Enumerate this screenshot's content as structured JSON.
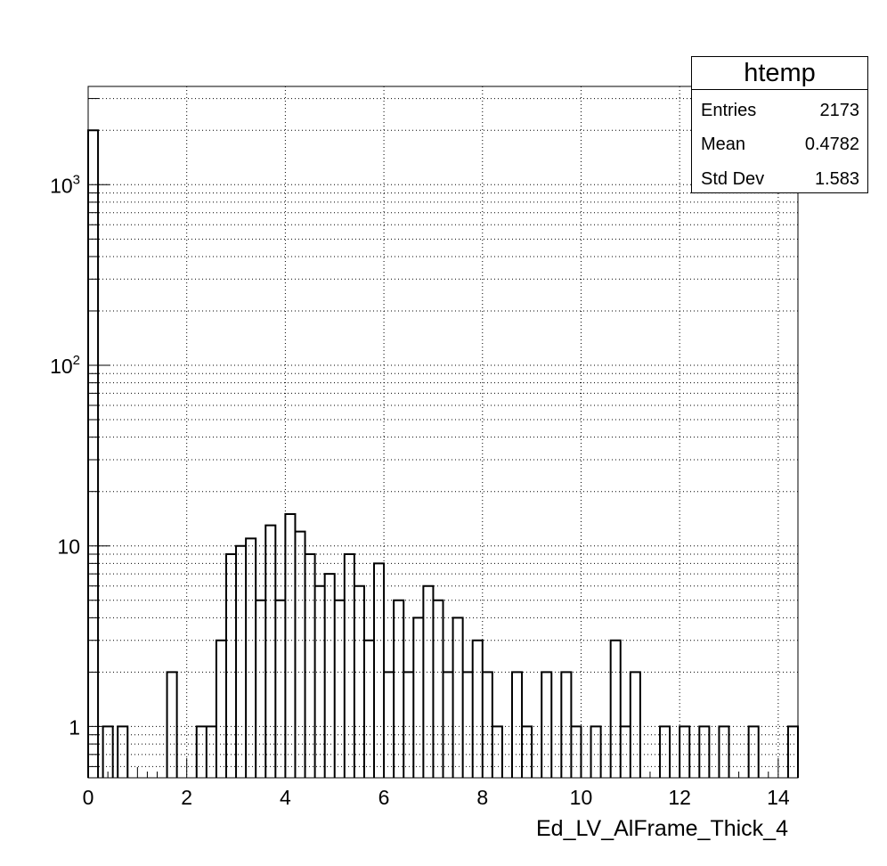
{
  "stats": {
    "title": "htemp",
    "rows": [
      {
        "key": "Entries",
        "value": "2173"
      },
      {
        "key": "Mean",
        "value": "0.4782"
      },
      {
        "key": "Std Dev",
        "value": "1.583"
      }
    ]
  },
  "chart_data": {
    "type": "histogram",
    "xlabel": "Ed_LV_AlFrame_Thick_4",
    "ylabel": "",
    "xlim": [
      0,
      14.4
    ],
    "ylim": [
      0.52,
      3500
    ],
    "yscale": "log",
    "grid": true,
    "legend": "top-right",
    "bin_width": 0.2,
    "x_ticks": [
      "0",
      "2",
      "4",
      "6",
      "8",
      "10",
      "12",
      "14"
    ],
    "y_ticks": [
      {
        "value": 1,
        "base": "1",
        "exp": ""
      },
      {
        "value": 10,
        "base": "10",
        "exp": ""
      },
      {
        "value": 100,
        "base": "10",
        "exp": "2"
      },
      {
        "value": 1000,
        "base": "10",
        "exp": "3"
      }
    ],
    "bins": [
      {
        "x": 0.0,
        "y": 2000
      },
      {
        "x": 0.2,
        "y": 0
      },
      {
        "x": 0.3,
        "y": 1
      },
      {
        "x": 0.6,
        "y": 1
      },
      {
        "x": 1.6,
        "y": 2
      },
      {
        "x": 2.2,
        "y": 1
      },
      {
        "x": 2.4,
        "y": 1
      },
      {
        "x": 2.6,
        "y": 3
      },
      {
        "x": 2.8,
        "y": 9
      },
      {
        "x": 3.0,
        "y": 10
      },
      {
        "x": 3.2,
        "y": 11
      },
      {
        "x": 3.4,
        "y": 5
      },
      {
        "x": 3.6,
        "y": 13
      },
      {
        "x": 3.8,
        "y": 5
      },
      {
        "x": 4.0,
        "y": 15
      },
      {
        "x": 4.2,
        "y": 12
      },
      {
        "x": 4.4,
        "y": 9
      },
      {
        "x": 4.6,
        "y": 6
      },
      {
        "x": 4.8,
        "y": 7
      },
      {
        "x": 5.0,
        "y": 5
      },
      {
        "x": 5.2,
        "y": 9
      },
      {
        "x": 5.4,
        "y": 6
      },
      {
        "x": 5.6,
        "y": 3
      },
      {
        "x": 5.8,
        "y": 8
      },
      {
        "x": 6.0,
        "y": 2
      },
      {
        "x": 6.2,
        "y": 5
      },
      {
        "x": 6.4,
        "y": 2
      },
      {
        "x": 6.6,
        "y": 4
      },
      {
        "x": 6.8,
        "y": 6
      },
      {
        "x": 7.0,
        "y": 5
      },
      {
        "x": 7.2,
        "y": 2
      },
      {
        "x": 7.4,
        "y": 4
      },
      {
        "x": 7.6,
        "y": 2
      },
      {
        "x": 7.8,
        "y": 3
      },
      {
        "x": 8.0,
        "y": 2
      },
      {
        "x": 8.2,
        "y": 1
      },
      {
        "x": 8.6,
        "y": 2
      },
      {
        "x": 8.8,
        "y": 1
      },
      {
        "x": 9.2,
        "y": 2
      },
      {
        "x": 9.6,
        "y": 2
      },
      {
        "x": 9.8,
        "y": 1
      },
      {
        "x": 10.2,
        "y": 1
      },
      {
        "x": 10.6,
        "y": 3
      },
      {
        "x": 10.8,
        "y": 1
      },
      {
        "x": 11.0,
        "y": 2
      },
      {
        "x": 11.6,
        "y": 1
      },
      {
        "x": 12.0,
        "y": 1
      },
      {
        "x": 12.4,
        "y": 1
      },
      {
        "x": 12.8,
        "y": 1
      },
      {
        "x": 13.4,
        "y": 1
      },
      {
        "x": 14.2,
        "y": 1
      }
    ]
  }
}
